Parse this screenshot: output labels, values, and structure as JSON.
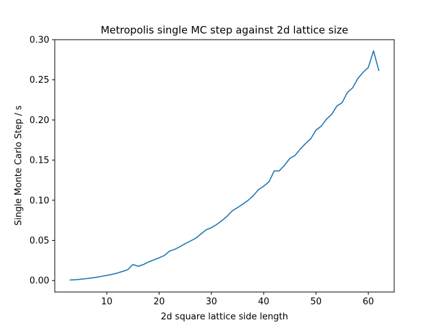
{
  "chart_data": {
    "type": "line",
    "title": "Metropolis single MC step against 2d lattice size",
    "xlabel": "2d square lattice side length",
    "ylabel": "Single Monte Carlo Step / s",
    "xlim": [
      0.05,
      64.95
    ],
    "ylim": [
      -0.0143,
      0.3
    ],
    "xticks": [
      10,
      20,
      30,
      40,
      50,
      60
    ],
    "xtick_labels": [
      "10",
      "20",
      "30",
      "40",
      "50",
      "60"
    ],
    "yticks": [
      0.0,
      0.05,
      0.1,
      0.15,
      0.2,
      0.25,
      0.3
    ],
    "ytick_labels": [
      "0.00",
      "0.05",
      "0.10",
      "0.15",
      "0.20",
      "0.25",
      "0.30"
    ],
    "grid": false,
    "series": [
      {
        "color": "#1f77b4",
        "x": [
          3,
          4,
          5,
          6,
          7,
          8,
          9,
          10,
          11,
          12,
          13,
          14,
          15,
          16,
          17,
          18,
          19,
          20,
          21,
          22,
          23,
          24,
          25,
          26,
          27,
          28,
          29,
          30,
          31,
          32,
          33,
          34,
          35,
          36,
          37,
          38,
          39,
          40,
          41,
          42,
          43,
          44,
          45,
          46,
          47,
          48,
          49,
          50,
          51,
          52,
          53,
          54,
          55,
          56,
          57,
          58,
          59,
          60,
          61,
          62
        ],
        "y": [
          0.0007,
          0.001,
          0.0016,
          0.0023,
          0.0031,
          0.0041,
          0.0052,
          0.0064,
          0.0077,
          0.0093,
          0.0113,
          0.0135,
          0.02,
          0.0178,
          0.0199,
          0.0232,
          0.0257,
          0.0283,
          0.0312,
          0.0367,
          0.0389,
          0.0422,
          0.046,
          0.0492,
          0.0527,
          0.058,
          0.0632,
          0.0658,
          0.0698,
          0.0746,
          0.08,
          0.0869,
          0.0908,
          0.0952,
          0.0998,
          0.1056,
          0.1132,
          0.1175,
          0.1229,
          0.1364,
          0.1367,
          0.1437,
          0.1522,
          0.1558,
          0.1638,
          0.1707,
          0.1766,
          0.1874,
          0.1922,
          0.201,
          0.207,
          0.2174,
          0.2216,
          0.2343,
          0.24,
          0.2516,
          0.2593,
          0.2654,
          0.2862,
          0.2617
        ]
      }
    ]
  }
}
